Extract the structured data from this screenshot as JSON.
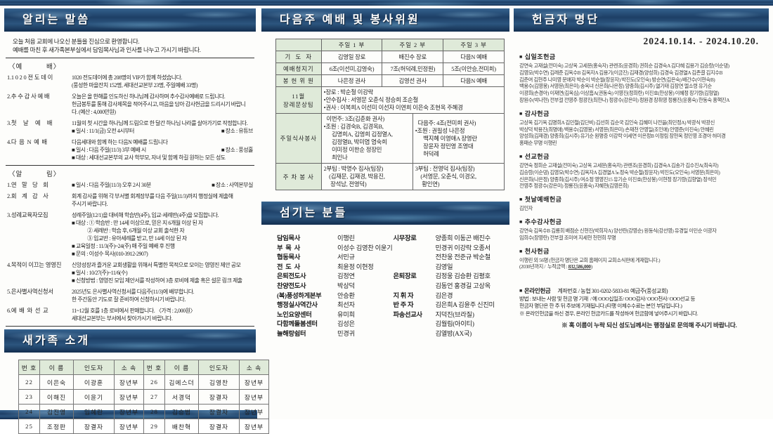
{
  "bullet": "■",
  "left": {
    "title": "알리는 말씀",
    "intro": [
      "오늘 처음 교회에 나오신 분들을 진심으로 환영합니다.",
      "예배를 마친 후 새가족본부실에서 담임목사님과 인사를 나누고 가시기 바랍니다."
    ],
    "sections": [
      {
        "header": "〈예          배〉",
        "items": [
          {
            "num": "1.",
            "label": "1 0 2 0 전 도 데 이",
            "body": [
              "1020 전도데이에 총 208명의 VIP가 함께 하셨습니다.",
              "(풍성한 마을잔치 152명, 세대선교본부 23명, 주일예배 33명)"
            ]
          },
          {
            "num": "2.",
            "label": "추 수 감 사 예 배",
            "body": [
              "오늘은 올 한해를 인도하신 하나님께 감사하며 추수감사예배로 드립니다.",
              "헌금봉투를 통해 감사제목을 적어주시고, 마음을 담아 감사헌금을 드리시기 바랍니",
              "다. (예산 : 4,000만원)"
            ]
          },
          {
            "num": "3.",
            "label": "첫     날     예     배",
            "body": [
              "11월의 첫 시간을 하나님께 드림으로 한 달간 하나님 나라를 살아가기로 작정합니다.",
              {
                "l": "■ 일시 : 11/1(금) 오전 4시부터",
                "r": "■ 장소 : 유튜브"
              }
            ]
          },
          {
            "num": "4.",
            "label": "다  음  N  예  배",
            "body": [
              "다음세대와 함께 하는 다음N 예배를 드립니다",
              {
                "l": "■ 일시 : 다음 주일(11/3) 3부 예배 시",
                "r": "■ 장소 : 풍성홀"
              },
              "■ 대상 : 세대선교본부의 교사 학부모, 자녀 및 함께 하길 원하는 모든 성도"
            ]
          }
        ]
      },
      {
        "header": "〈알          림〉",
        "items": [
          {
            "num": "1.",
            "label": "연    말    당    회",
            "body": [
              {
                "l": "■ 일시 : 다음 주일(11/3) 오후 2시 30분",
                "r": "■ 장소 : 사역본부실"
              }
            ]
          },
          {
            "num": "2.",
            "label": "회    계    감    사",
            "body": [
              "회계 감사를 위해 각 부서별 회계장부를 다음 주일(11/3)까지 행정실에 제출해",
              "주시기 바랍니다."
            ]
          },
          {
            "num": "3.",
            "label": "성례교육자모집",
            "body": [
              "성례주일(12/1)을 대비해 학습반(4주), 입교·세례반(4주)을 모집합니다.",
              "■ 대상 : ① 학습반 : 만 14세 이상으로, 믿은 지 6개월 이상 된 자",
              "              ② 세례반 : 학습 후, 6개월 이상 교회 출석한 자",
              "              ③ 입교반 : 유아세례를 받고, 만 14세 이상 된 자",
              "■ 교육일정 : 11/3(주)~24(주) 매 주일 예배 후 진행",
              "■ 문의 : 이성수 목사(010-3912-2907)"
            ]
          },
          {
            "num": "4.",
            "label": "목적이 이끄는 영영진",
            "body": [
              "신앙성장과 즐거운 교회생활을 위해서 특별한 목적으로 모이는 영영진 제안 공모",
              "■ 일시 : 10/27(주)~11/6(수)",
              "■ 신청방법 : 영영진 모임 제안서를 작성하여 3층 로비에 제출 혹은 설문 링크 제출"
            ]
          },
          {
            "num": "5.",
            "label": "은사별사역신청서",
            "body": [
              "2025년도 은사별사역신청서를 다음주(11/3)에 배부합니다.",
              "한 주간동안 기도로 잘 준비하여 신청하시기 바랍니다."
            ]
          },
          {
            "num": "6.",
            "label": "예  배  와  선  교",
            "body": [
              "11~12월 호를 1층 로비에서 판매합니다. 〈가격 : 2,000원〉",
              "세대선교본부는 부서에서 찾아가시기 바랍니다."
            ]
          }
        ]
      }
    ]
  },
  "new_family": {
    "title": "새가족 소개",
    "headers": [
      "번 호",
      "이  름",
      "인도자",
      "소 속",
      "번 호",
      "이  름",
      "인도자",
      "소 속"
    ],
    "rows": [
      [
        "22",
        "이은숙",
        "이광훈",
        "장년부",
        "26",
        "김에스더",
        "김영찬",
        "장년부"
      ],
      [
        "23",
        "이해진",
        "이윤기",
        "장년부",
        "27",
        "서경덕",
        "장결자",
        "장년부"
      ],
      [
        "24",
        "김진영",
        "임혜란",
        "장년부",
        "28",
        "김승범",
        "장결자",
        "장년부"
      ],
      [
        "25",
        "조정판",
        "장결자",
        "장년부",
        "29",
        "배찬혁",
        "장결자",
        "장년부"
      ]
    ]
  },
  "mid": {
    "title": "다음주 예배 및 봉사위원",
    "table": {
      "col_headers": [
        "주일 1 부",
        "주일 2 부",
        "주일 3 부"
      ],
      "rows": [
        {
          "label": "기  도  자",
          "type": "three",
          "cells": [
            "김영일 장로",
            "배진수 장로",
            "다음N 예배"
          ]
        },
        {
          "label": "예배청지기",
          "type": "three",
          "cells": [
            "6조(이선미,김영숙)",
            "7조(허덕례,민정원)",
            "5조(이안승,전미희)"
          ]
        },
        {
          "label": "봉 헌 위 원",
          "type": "three",
          "cells": [
            "나은정 권사",
            "김영선 권사",
            "다음N 예배"
          ]
        },
        {
          "label": "11월\n장례문상팀",
          "type": "full",
          "lines": [
            "•장로 : 박순철 이강락",
            "•안수집사 : 서영문 오춘식 정승희 조순철",
            "•권사 : 이복희A 이선미 이선자 이연희 이은숙 조현옥 주혜경"
          ]
        },
        {
          "label": "주일식사봉사",
          "type": "two",
          "cells": [
            {
              "lines": [
                "  이번주: 3조(김춘화 권사)",
                "•조원 : 김경숙B, 김경옥B,",
                "      김명희A, 김영희 김정열A,",
                "      김정열B, 박미엽 염숙희",
                "      이미정 이한순 정장민",
                "      최인나"
              ]
            },
            {
              "lines": [
                "  다음주: 4조(전미희 권사)",
                "•조원 : 권필성 나은정",
                "      백지혜 이영애A 장영란",
                "      장윤자 정민영 조영대",
                "      허덕례"
              ]
            }
          ]
        },
        {
          "label": "주 차 봉 사",
          "type": "two",
          "cells": [
            {
              "lines": [
                "2부팀 : 박명수 집사(팀장)",
                "    (김재문, 김재경, 박용진,",
                "     장석남, 전영덕)"
              ]
            },
            {
              "lines": [
                "3부팀 : 전영덕 집사(팀장)",
                "    (서영문, 오춘식, 이경오,",
                "     황인연)"
              ]
            }
          ]
        }
      ]
    }
  },
  "serving": {
    "title": "섬기는 분들",
    "left": [
      {
        "role": "담임목사",
        "names": [
          "이행린"
        ]
      },
      {
        "role": "부  목  사",
        "names": [
          "이성수 김영찬 이윤기"
        ]
      },
      {
        "role": "협동목사",
        "names": [
          "서민규"
        ]
      },
      {
        "role": "전  도  사",
        "names": [
          "최윤정 이현정"
        ]
      },
      {
        "role": "은퇴전도사",
        "names": [
          "김정연"
        ]
      },
      {
        "role": "찬양전도사",
        "names": [
          "박상덕"
        ]
      },
      {
        "role": "(복)풍성하게본부",
        "names": [
          "안승환"
        ]
      },
      {
        "role": "행정실사역간사",
        "names": [
          "최선자"
        ]
      },
      {
        "role": "노인요양센터",
        "names": [
          "유미희"
        ]
      },
      {
        "role": "다함께돌봄센터",
        "names": [
          "김성은"
        ]
      },
      {
        "role": "늘해랑쉼터",
        "names": [
          "민경귀"
        ]
      }
    ],
    "right": [
      {
        "role": "시무장로",
        "names": [
          "양종희 이동곤 배진수",
          "민경귀 이강락 오종서",
          "전찬웅 전준규 박순철",
          "김영일"
        ]
      },
      {
        "role": "은퇴장로",
        "names": [
          "김정웅 김승환 김평호",
          "김동언 홍경길 고상옥"
        ]
      },
      {
        "role": "지 휘 자",
        "names": [
          "김은경"
        ]
      },
      {
        "role": "반 주 자",
        "names": [
          "김은희A 김윤주 신진미"
        ]
      },
      {
        "role": "파송선교사",
        "names": [
          "지덕진(브라질)",
          "김월림(아이티)",
          "김열방(AX국)"
        ]
      }
    ]
  },
  "right": {
    "title": "헌금자 명단",
    "date_range": "2024.10.14.  -  2024.10.20.",
    "sections": [
      {
        "name": "십일조헌금",
        "lines": [
          "강연숙 고재설(전미숙) 고상옥 고세문(홍숙자) 관렌조(윤경희) 권희순 김경숙A 김다혜 김용가 김승랑(이순댕)",
          "김영모(박수연) 김례준 김옥수B 김옥자A 김용기(이금진) 김재경(양성희) 김경숙 김경열A 김존결 김지수B",
          "김준여 김현주 나미영 문애자 박순이 박순월(장윤자) 박진도(오인숙) 방순연(김은숙) 배간수(이현숙B)",
          "백용수(김영봉) 서영문(최은미) 송옥녀 신은희(나은정) 양종희(김시주) 열기태 김장연 엘소령 유기순",
          "이광희(손경아) 이재연(김옥심) 이상흠A(권동숙) 이영진(정희란) 이진호(한상봉) 이혜정 장기량(김형열)",
          "장원수(박나현) 전부걸 전영주 정광진(최한나) 정광수(강은미) 정원경 장취영 정룡진(윤홍숙) 한동숙 홍핵진A"
        ]
      },
      {
        "name": "감사헌금",
        "lines": [
          "고상옥 김기옥 김명희A 김민철(김단비) 김선희 김순국 김인숙 김혜미 나전을(최민정A) 박광식 박광신",
          "박상덕 박용진(최명애) 백용수(김영봉) 서영문(최은미) 손재천 안영일(조인애) 안영준(이진숙) 안혜린",
          "양성희(김재경) 양종희(김시주) 유기순 원명증 이강락 이세연 이은정B 이정림 장현옥 정민영 조경아 허미경",
          "홍패순 무명 이행린"
        ]
      },
      {
        "name": "선교헌금",
        "lines": [
          "강연숙 정희순 고재설(전미숙) 고상옥 고세문(홍숙자) 관렌조(윤경희) 김경숙A 김송가 김수진A(최숙자)",
          "김승랑(이순댕) 김영모(박수연) 김옥자A 김경열A 노정숙 박순철(장윤자) 박진도(오인숙) 서영문(최은미)",
          "신은희(나은정) 양종희(김시주) 여소정 영영진15 유기순 이진호(한상봉) 이현정 장기량(김향열) 장석민",
          "전영주 정광수(강은미) 정룡진(윤홍숙) 자혜현(김영은희)"
        ]
      },
      {
        "name": "첫날예배헌금",
        "lines": [
          "김인자"
        ]
      },
      {
        "name": "추수감사헌금",
        "lines": [
          "강연숙 김옥수B 김룡희 배점순 신현진(박희자A) 양선란(강영순) 원동식(강선영) 유경일 이민순 이광자",
          "임희수(장영란) 전부걸 조미여 지세현 천현희 무명"
        ]
      },
      {
        "name": "천사헌금",
        "lines": [
          "이행린 외 56명 (헌금자 명단은 교회 홈페이지 교회소식판에 게재합니다.)"
        ],
        "amount_prefix": "(2030년까지 /  누적금액 : ",
        "amount": "832,586,000",
        "amount_suffix": ")"
      }
    ],
    "online": {
      "label": "온라인헌금",
      "account_line": "계좌번호 / 농협 301-0202-5833-81  예금주(풍성교회)",
      "lines": [
        "방법 : 보내는 사람 및 헌금 명 기재  / 예 OOO십일조/ OOO감사/ OOO천사/ OOO선교 등",
        "헌금자 명단은 한 주 뒤 주보에 기재됩니다.(타행 이체수수료는 본인 부담입니다.)",
        "※ 온라인헌금을 하신 경우, 온라인 헌금카드를 작성하여 헌금함에 넣어주시기 바랍니다."
      ],
      "notice": "※ 혹 이름이 누락 되신 성도님께서는 행정실로 문의해 주시기 바랍니다."
    }
  }
}
